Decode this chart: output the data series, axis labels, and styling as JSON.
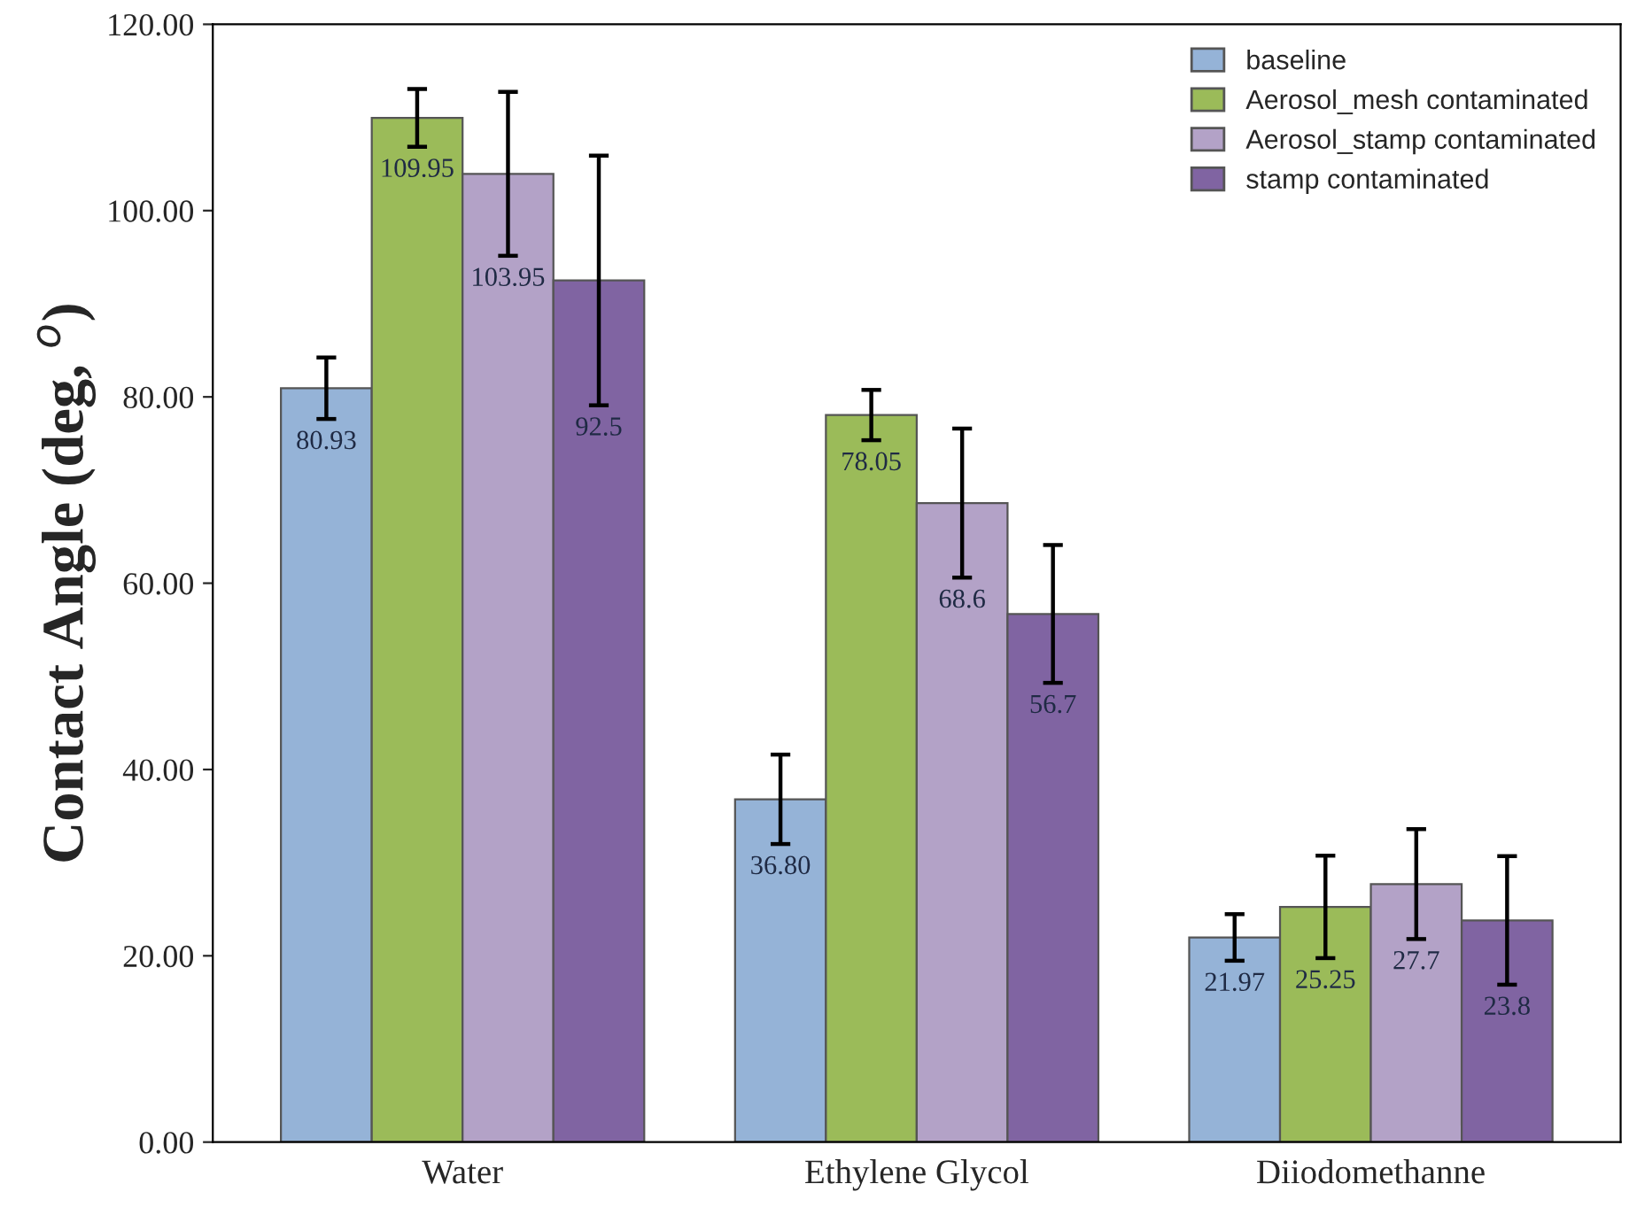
{
  "chart_data": {
    "type": "bar",
    "ylabel": "Contact Angle (deg, $^{o}$)",
    "categories": [
      "Water",
      "Ethylene Glycol",
      "Diiodomethanne"
    ],
    "series": [
      {
        "name": "baseline",
        "color": "#95b3d7",
        "values": [
          80.93,
          36.8,
          21.97
        ],
        "errors": [
          3.3,
          4.8,
          2.5
        ],
        "value_labels": [
          "80.93",
          "36.80",
          "21.97"
        ]
      },
      {
        "name": "Aerosol_mesh contaminated",
        "color": "#9bbb59",
        "values": [
          109.95,
          78.05,
          25.25
        ],
        "errors": [
          3.1,
          2.7,
          5.5
        ],
        "value_labels": [
          "109.95",
          "78.05",
          "25.25"
        ]
      },
      {
        "name": "Aerosol_stamp contaminated",
        "color": "#b3a2c7",
        "values": [
          103.95,
          68.6,
          27.7
        ],
        "errors": [
          8.8,
          8.0,
          5.9
        ],
        "value_labels": [
          "103.95",
          "68.6",
          "27.7"
        ]
      },
      {
        "name": "stamp contaminated",
        "color": "#8064a2",
        "values": [
          92.5,
          56.7,
          23.8
        ],
        "errors": [
          13.4,
          7.4,
          6.9
        ],
        "value_labels": [
          "92.5",
          "56.7",
          "23.8"
        ]
      }
    ],
    "ylim": [
      0,
      120
    ],
    "yticks": [
      {
        "value": 0,
        "label": "0.00"
      },
      {
        "value": 20,
        "label": "20.00"
      },
      {
        "value": 40,
        "label": "40.00"
      },
      {
        "value": 60,
        "label": "60.00"
      },
      {
        "value": 80,
        "label": "80.00"
      },
      {
        "value": 100,
        "label": "100.00"
      },
      {
        "value": 120,
        "label": "120.00"
      }
    ],
    "grid": false,
    "legend": "top right"
  }
}
